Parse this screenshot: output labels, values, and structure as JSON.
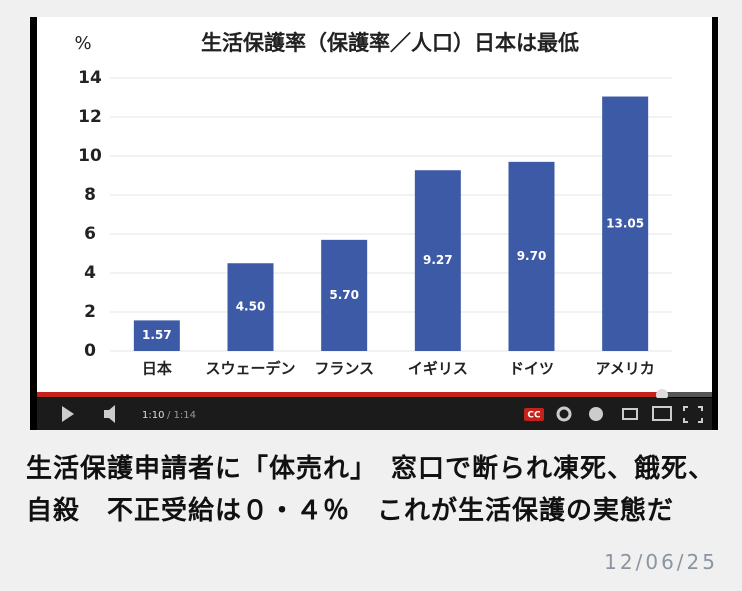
{
  "chart_data": {
    "type": "bar",
    "title": "生活保護率（保護率／人口）日本は最低",
    "y_label": "%",
    "categories": [
      "日本",
      "スウェーデン",
      "フランス",
      "イギリス",
      "ドイツ",
      "アメリカ"
    ],
    "values": [
      1.57,
      4.5,
      5.7,
      9.27,
      9.7,
      13.05
    ],
    "value_labels": [
      "1.57",
      "4.50",
      "5.70",
      "9.27",
      "9.70",
      "13.05"
    ],
    "color": "#3d5aa6",
    "ylim": [
      0,
      14
    ],
    "yticks": [
      0,
      2,
      4,
      6,
      8,
      10,
      12,
      14
    ],
    "grid": true
  },
  "player": {
    "current_time": "1:10",
    "duration": "/ 1:14",
    "captions_button": "CC"
  },
  "caption": {
    "headline": "生活保護申請者に「体売れ」　窓口で断られ凍死、餓死、自殺　不正受給は０・４％　これが生活保護の実態だ",
    "date": "12/06/25"
  }
}
